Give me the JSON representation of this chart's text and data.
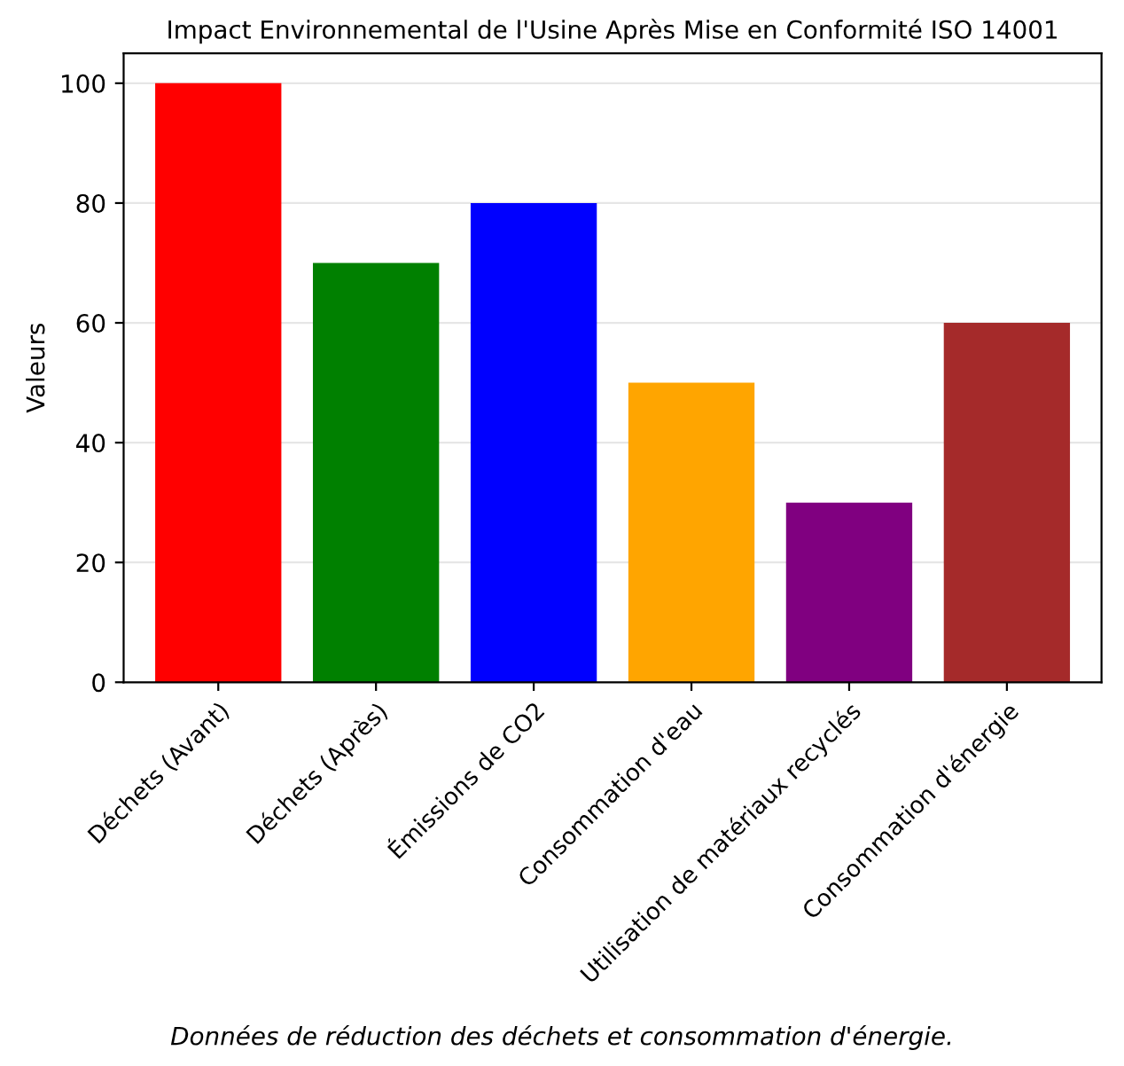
{
  "chart_data": {
    "type": "bar",
    "title": "Impact Environnemental de l'Usine Après Mise en Conformité ISO 14001",
    "ylabel": "Valeurs",
    "categories": [
      "Déchets (Avant)",
      "Déchets (Après)",
      "Émissions de CO2",
      "Consommation d'eau",
      "Utilisation de matériaux recyclés",
      "Consommation d'énergie"
    ],
    "values": [
      100,
      70,
      80,
      50,
      30,
      60
    ],
    "colors": [
      "#ff0000",
      "#008000",
      "#0000ff",
      "#ffa500",
      "#800080",
      "#a52a2a"
    ],
    "ylim": [
      0,
      105
    ],
    "yticks": [
      0,
      20,
      40,
      60,
      80,
      100
    ],
    "grid": "y",
    "annotations": [
      "Données de réduction des déchets et consommation d'énergie."
    ]
  }
}
